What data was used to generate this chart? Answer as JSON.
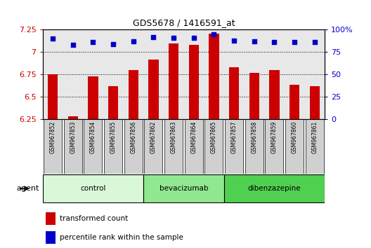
{
  "title": "GDS5678 / 1416591_at",
  "samples": [
    "GSM967852",
    "GSM967853",
    "GSM967854",
    "GSM967855",
    "GSM967856",
    "GSM967862",
    "GSM967863",
    "GSM967864",
    "GSM967865",
    "GSM967857",
    "GSM967858",
    "GSM967859",
    "GSM967860",
    "GSM967861"
  ],
  "transformed_count": [
    6.75,
    6.28,
    6.73,
    6.62,
    6.8,
    6.92,
    7.1,
    7.08,
    7.21,
    6.83,
    6.77,
    6.8,
    6.63,
    6.62
  ],
  "percentile_rank": [
    90,
    83,
    86,
    84,
    87,
    92,
    91,
    91,
    95,
    88,
    87,
    86,
    86,
    86
  ],
  "ylim_left": [
    6.25,
    7.25
  ],
  "ylim_right": [
    0,
    100
  ],
  "yticks_left": [
    6.25,
    6.5,
    6.75,
    7.0,
    7.25
  ],
  "yticks_right": [
    0,
    25,
    50,
    75,
    100
  ],
  "ytick_labels_left": [
    "6.25",
    "6.5",
    "6.75",
    "7",
    "7.25"
  ],
  "ytick_labels_right": [
    "0",
    "25",
    "50",
    "75",
    "100%"
  ],
  "groups": [
    {
      "name": "control",
      "start": 0,
      "end": 5,
      "color": "#d8f8d8"
    },
    {
      "name": "bevacizumab",
      "start": 5,
      "end": 9,
      "color": "#90e890"
    },
    {
      "name": "dibenzazepine",
      "start": 9,
      "end": 14,
      "color": "#50d050"
    }
  ],
  "bar_color": "#cc0000",
  "dot_color": "#0000cc",
  "bar_width": 0.5,
  "bar_bottom": 6.25,
  "grid_color": "#888888",
  "plot_bg_color": "#e8e8e8",
  "sample_box_color": "#d0d0d0",
  "agent_label": "agent",
  "legend_bar_label": "transformed count",
  "legend_dot_label": "percentile rank within the sample"
}
